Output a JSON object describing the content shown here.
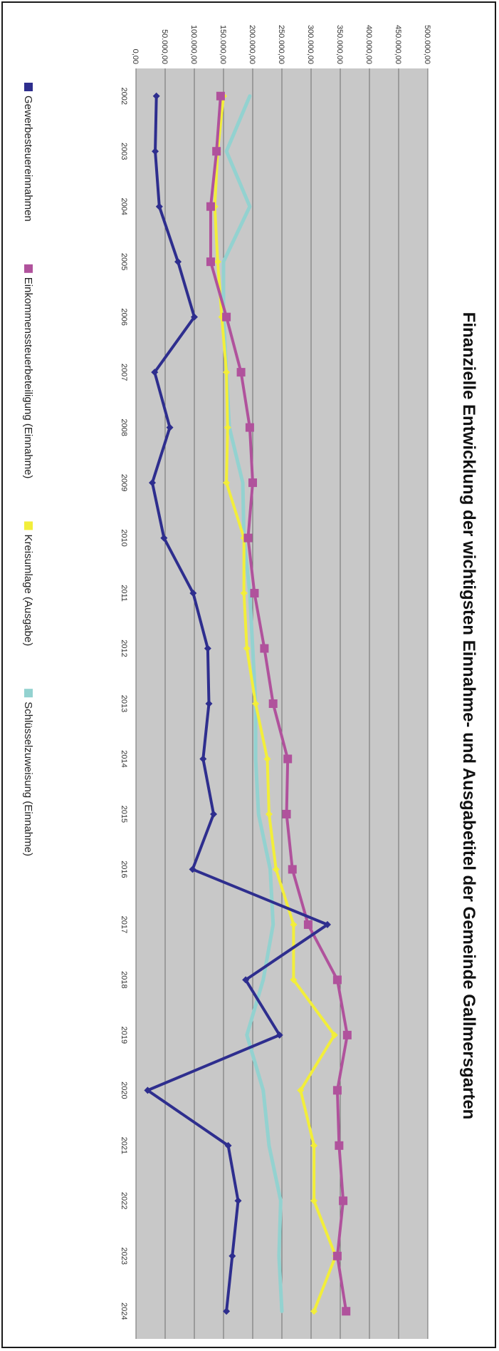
{
  "chart_data": {
    "type": "line",
    "title": "Finanzielle Entwicklung der wichtigsten Einnahme- und Ausgabetitel der Gemeinde Gallmersgarten",
    "xlabel": "",
    "ylabel": "",
    "x": [
      "2002",
      "2003",
      "2004",
      "2005",
      "2006",
      "2007",
      "2008",
      "2009",
      "2010",
      "2011",
      "2012",
      "2013",
      "2014",
      "2015",
      "2016",
      "2017",
      "2018",
      "2019",
      "2020",
      "2021",
      "2022",
      "2023",
      "2024"
    ],
    "ylim": [
      0,
      500000
    ],
    "yticks": [
      "0,00",
      "50.000,00",
      "100.000,00",
      "150.000,00",
      "200.000,00",
      "250.000,00",
      "300.000,00",
      "350.000,00",
      "400.000,00",
      "450.000,00",
      "500.000,00"
    ],
    "grid": true,
    "legend": "bottom",
    "plot_background": "#c8c8c8",
    "series": [
      {
        "name": "Gewerbesteuereinnahmen",
        "color": "#2e2e8e",
        "marker": "diamond",
        "values": [
          35000,
          33000,
          40000,
          72000,
          100000,
          32000,
          58000,
          28000,
          48000,
          98000,
          123000,
          125000,
          115000,
          133000,
          97000,
          328000,
          188000,
          246000,
          20000,
          158000,
          175000,
          165000,
          155000
        ]
      },
      {
        "name": "Einkommenssteuerbeteiligung (Einnahme)",
        "color": "#b0529c",
        "marker": "square",
        "values": [
          145000,
          138000,
          128000,
          128000,
          155000,
          180000,
          195000,
          200000,
          192000,
          203000,
          220000,
          235000,
          260000,
          258000,
          268000,
          295000,
          345000,
          362000,
          345000,
          348000,
          355000,
          345000,
          360000
        ]
      },
      {
        "name": "Kreisumlage (Ausgabe)",
        "color": "#f2ee3a",
        "marker": "diamond",
        "values": [
          150000,
          140000,
          135000,
          140000,
          147000,
          155000,
          157000,
          155000,
          185000,
          185000,
          190000,
          205000,
          225000,
          228000,
          240000,
          270000,
          270000,
          340000,
          282000,
          305000,
          305000,
          342000,
          305000
        ]
      },
      {
        "name": "Schlüsselzuweisung (Einnahme)",
        "color": "#93d2d0",
        "marker": "none",
        "values": [
          195000,
          155000,
          195000,
          150000,
          150000,
          155000,
          160000,
          183000,
          185000,
          195000,
          200000,
          205000,
          205000,
          210000,
          230000,
          235000,
          218000,
          190000,
          218000,
          228000,
          248000,
          245000,
          250000
        ]
      }
    ]
  }
}
